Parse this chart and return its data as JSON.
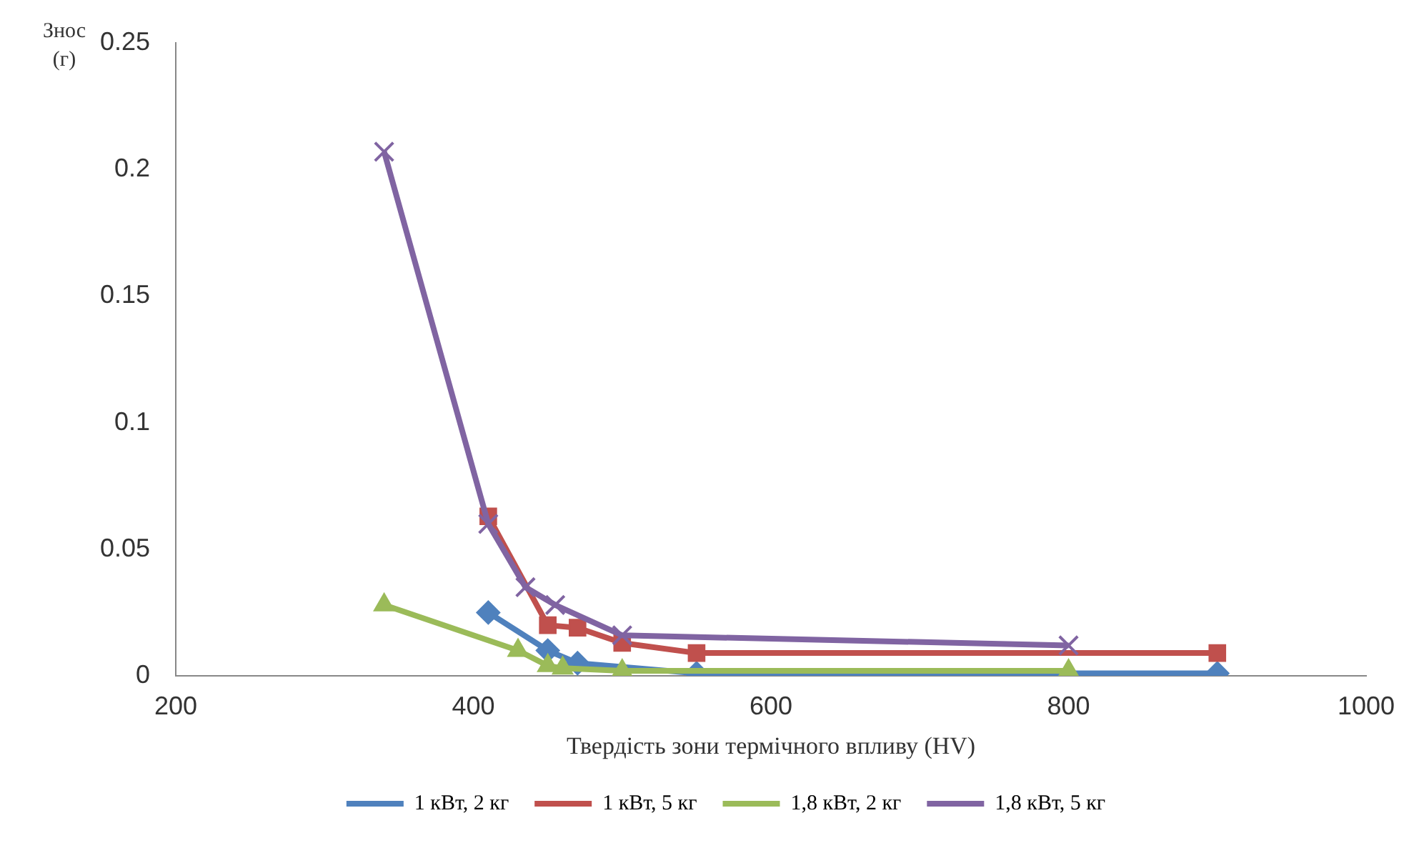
{
  "chart_data": {
    "type": "line",
    "xlabel": "Твердість зони термічного впливу (HV)",
    "ylabel": "Знос (г)",
    "xlim": [
      200,
      1000
    ],
    "xticks": [
      200,
      400,
      600,
      800,
      1000
    ],
    "ylim": [
      0,
      0.25
    ],
    "yticks": [
      0,
      0.05,
      0.1,
      0.15,
      0.2,
      0.25
    ],
    "grid": false,
    "legend": "bottom",
    "series": [
      {
        "name": "1 кВт, 2 кг",
        "color": "#4f81bd",
        "marker": "diamond",
        "x": [
          410,
          450,
          470,
          550,
          900
        ],
        "values": [
          0.025,
          0.01,
          0.005,
          0.001,
          0.001
        ]
      },
      {
        "name": "1 кВт, 5 кг",
        "color": "#c0504d",
        "marker": "square",
        "x": [
          410,
          450,
          470,
          500,
          550,
          900
        ],
        "values": [
          0.063,
          0.02,
          0.019,
          0.013,
          0.009,
          0.009
        ]
      },
      {
        "name": "1,8 кВт, 2 кг",
        "color": "#9bbb59",
        "marker": "triangle",
        "x": [
          340,
          430,
          450,
          460,
          500,
          800
        ],
        "values": [
          0.028,
          0.01,
          0.004,
          0.003,
          0.002,
          0.002
        ]
      },
      {
        "name": "1,8 кВт, 5 кг",
        "color": "#8064a2",
        "marker": "cross",
        "x": [
          340,
          410,
          435,
          455,
          500,
          800
        ],
        "values": [
          0.207,
          0.06,
          0.035,
          0.028,
          0.016,
          0.012
        ]
      }
    ]
  }
}
